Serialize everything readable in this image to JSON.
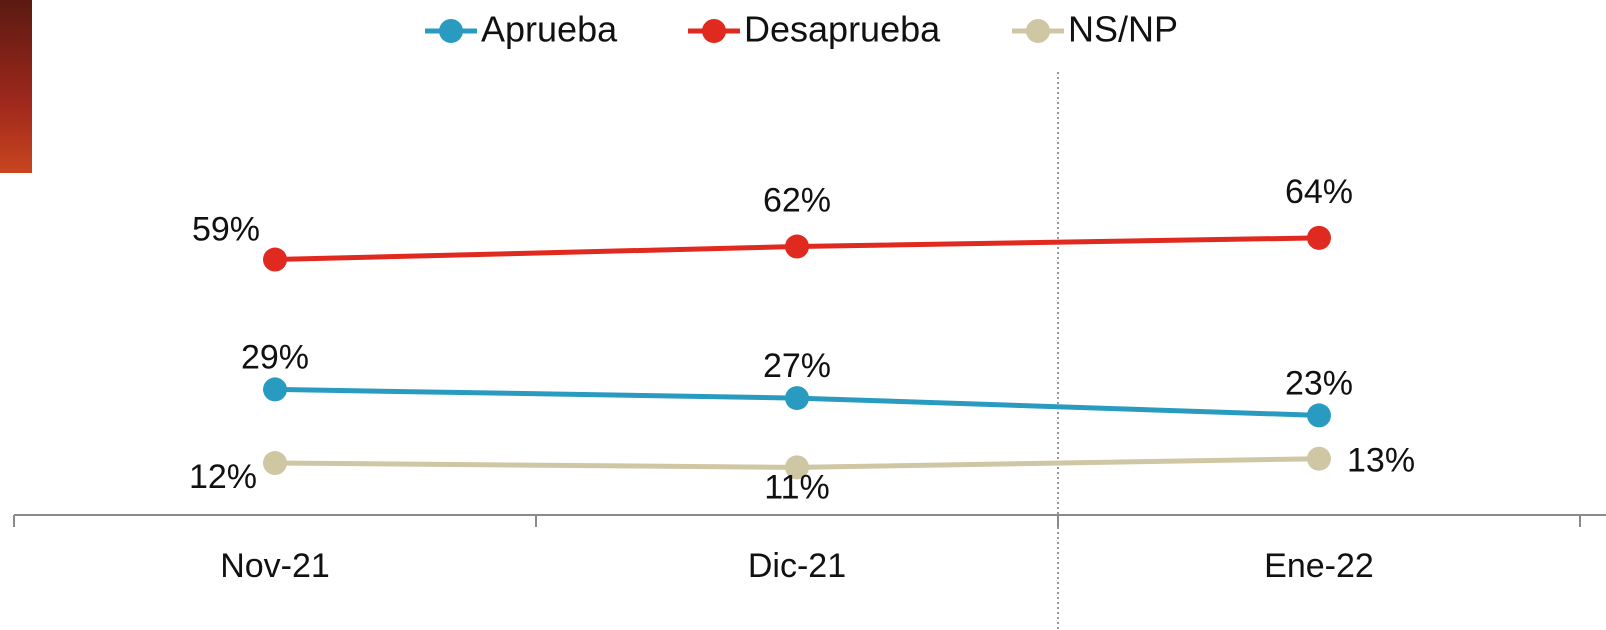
{
  "chart_data": {
    "type": "line",
    "categories": [
      "Nov-21",
      "Dic-21",
      "Ene-22"
    ],
    "series": [
      {
        "name": "Aprueba",
        "color": "#2a9bc0",
        "values": [
          29,
          27,
          23
        ],
        "value_labels": [
          "29%",
          "27%",
          "23%"
        ]
      },
      {
        "name": "Desaprueba",
        "color": "#e0291f",
        "values": [
          59,
          62,
          64
        ],
        "value_labels": [
          "59%",
          "62%",
          "64%"
        ]
      },
      {
        "name": "NS/NP",
        "color": "#cfc6a4",
        "values": [
          12,
          11,
          13
        ],
        "value_labels": [
          "12%",
          "11%",
          "13%"
        ]
      }
    ],
    "legend": "top"
  }
}
